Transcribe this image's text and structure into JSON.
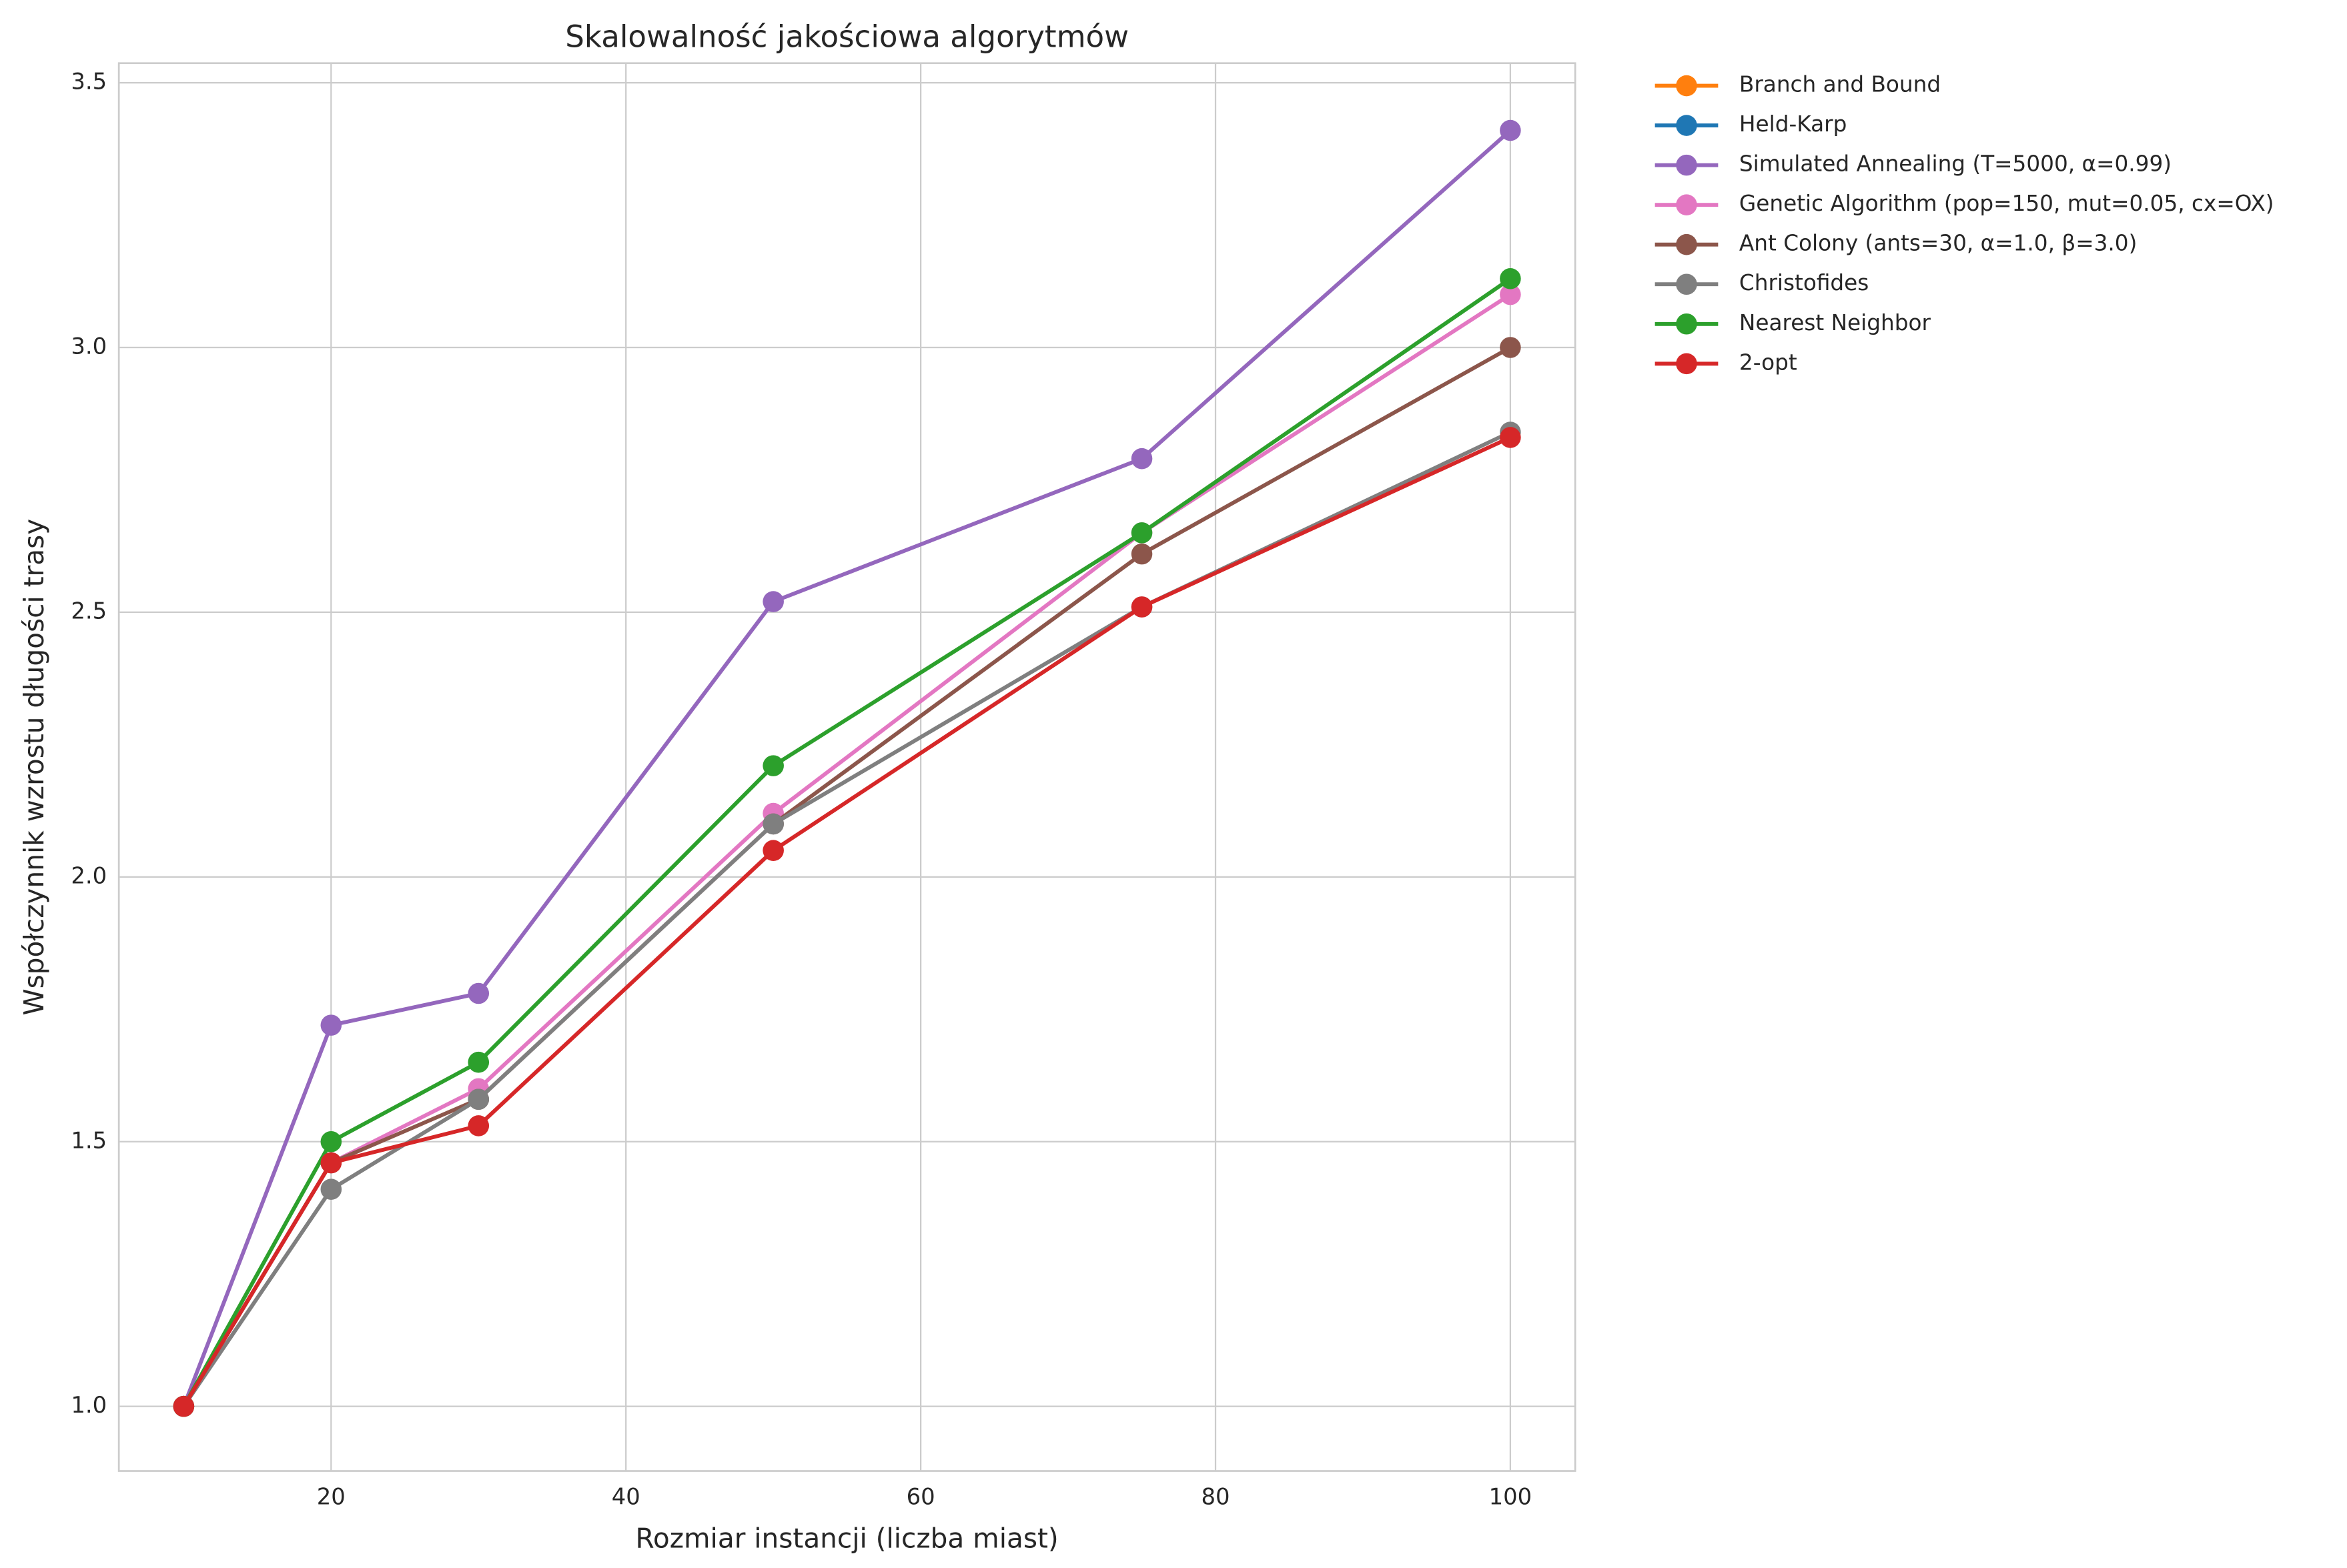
{
  "chart_data": {
    "type": "line",
    "title": "Skalowalność jakościowa algorytmów",
    "xlabel": "Rozmiar instancji (liczba miast)",
    "ylabel": "Współczynnik wzrostu długości trasy",
    "x": [
      10,
      20,
      30,
      50,
      75,
      100
    ],
    "series": [
      {
        "name": "Branch and Bound",
        "color": "#ff7f0e",
        "values": [
          1.0,
          null,
          null,
          null,
          null,
          null
        ]
      },
      {
        "name": "Held-Karp",
        "color": "#1f77b4",
        "values": [
          1.0,
          null,
          null,
          null,
          null,
          null
        ]
      },
      {
        "name": "Simulated Annealing (T=5000, α=0.99)",
        "color": "#9467bd",
        "values": [
          1.0,
          1.72,
          1.78,
          2.52,
          2.79,
          3.41
        ]
      },
      {
        "name": "Genetic Algorithm (pop=150, mut=0.05, cx=OX)",
        "color": "#e377c2",
        "values": [
          1.0,
          1.46,
          1.6,
          2.12,
          2.65,
          3.1
        ]
      },
      {
        "name": "Ant Colony (ants=30, α=1.0, β=3.0)",
        "color": "#8c564b",
        "values": [
          1.0,
          1.46,
          1.58,
          2.1,
          2.61,
          3.0
        ]
      },
      {
        "name": "Christofides",
        "color": "#7f7f7f",
        "values": [
          1.0,
          1.41,
          1.58,
          2.1,
          2.51,
          2.84
        ]
      },
      {
        "name": "Nearest Neighbor",
        "color": "#2ca02c",
        "values": [
          1.0,
          1.5,
          1.65,
          2.21,
          2.65,
          3.13
        ]
      },
      {
        "name": "2-opt",
        "color": "#d62728",
        "values": [
          1.0,
          1.46,
          1.53,
          2.05,
          2.51,
          2.83
        ]
      }
    ],
    "xlim": [
      5.6,
      104.4
    ],
    "xticks": [
      20,
      40,
      60,
      80,
      100
    ],
    "ylim": [
      0.878,
      3.537
    ],
    "yticks": [
      {
        "value": 1,
        "label": "1.0"
      },
      {
        "value": 1.5,
        "label": "1.5"
      },
      {
        "value": 2,
        "label": "2.0"
      },
      {
        "value": 2.5,
        "label": "2.5"
      },
      {
        "value": 3,
        "label": "3.0"
      },
      {
        "value": 3.5,
        "label": "3.5"
      }
    ],
    "grid": true,
    "legend": "outside-upper-right"
  }
}
